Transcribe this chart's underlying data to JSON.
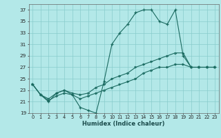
{
  "xlabel": "Humidex (Indice chaleur)",
  "bg_color": "#b3e8e8",
  "grid_color": "#88cccc",
  "line_color": "#1a6a60",
  "xlim": [
    -0.5,
    23.5
  ],
  "ylim": [
    19,
    38
  ],
  "yticks": [
    19,
    21,
    23,
    25,
    27,
    29,
    31,
    33,
    35,
    37
  ],
  "xticks": [
    0,
    1,
    2,
    3,
    4,
    5,
    6,
    7,
    8,
    9,
    10,
    11,
    12,
    13,
    14,
    15,
    16,
    17,
    18,
    19,
    20,
    21,
    22,
    23
  ],
  "series1_x": [
    0,
    1,
    2,
    3,
    4,
    5,
    6,
    7,
    8,
    9,
    10,
    11,
    12,
    13,
    14,
    15,
    16,
    17,
    18,
    19,
    20,
    21,
    22,
    23
  ],
  "series1_y": [
    24.0,
    22.2,
    21.0,
    22.5,
    23.0,
    22.2,
    20.0,
    19.5,
    19.0,
    24.5,
    31.0,
    33.0,
    34.5,
    36.5,
    37.0,
    37.0,
    35.0,
    34.5,
    37.0,
    29.0,
    27.0,
    27.0,
    27.0,
    27.0
  ],
  "series2_x": [
    0,
    1,
    2,
    3,
    4,
    5,
    6,
    7,
    8,
    9,
    10,
    11,
    12,
    13,
    14,
    15,
    16,
    17,
    18,
    19,
    20,
    21,
    22,
    23
  ],
  "series2_y": [
    24.0,
    22.2,
    21.5,
    22.5,
    23.0,
    22.5,
    22.2,
    22.5,
    23.5,
    24.0,
    25.0,
    25.5,
    26.0,
    27.0,
    27.5,
    28.0,
    28.5,
    29.0,
    29.5,
    29.5,
    27.0,
    27.0,
    27.0,
    27.0
  ],
  "series3_x": [
    0,
    1,
    2,
    3,
    4,
    5,
    6,
    7,
    8,
    9,
    10,
    11,
    12,
    13,
    14,
    15,
    16,
    17,
    18,
    19,
    20,
    21,
    22,
    23
  ],
  "series3_y": [
    24.0,
    22.2,
    21.2,
    22.0,
    22.5,
    22.2,
    21.5,
    22.0,
    22.5,
    23.0,
    23.5,
    24.0,
    24.5,
    25.0,
    26.0,
    26.5,
    27.0,
    27.0,
    27.5,
    27.5,
    27.0,
    27.0,
    27.0,
    27.0
  ]
}
